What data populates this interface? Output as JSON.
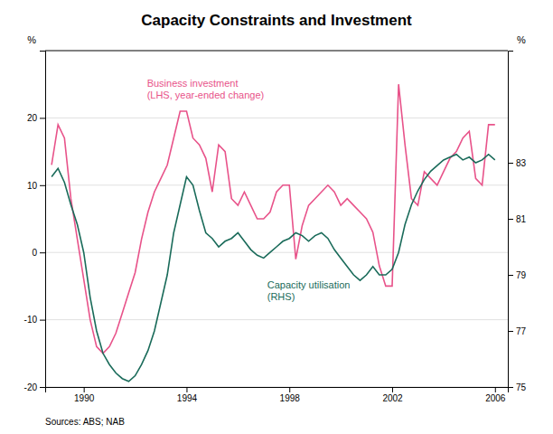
{
  "chart_data": {
    "type": "line",
    "title": "Capacity Constraints and Investment",
    "source": "Sources: ABS; NAB",
    "ylabel": "%",
    "y2label": "%",
    "xlim": [
      1988.5,
      2006.5
    ],
    "xticks": [
      1990,
      1994,
      1998,
      2002,
      2006
    ],
    "ylim": [
      -20,
      30
    ],
    "yticks": [
      -20,
      -10,
      0,
      10,
      20
    ],
    "y2lim": [
      75,
      87
    ],
    "y2ticks": [
      75,
      77,
      79,
      81,
      83
    ],
    "grid": true,
    "x": [
      1988.75,
      1989.0,
      1989.25,
      1989.5,
      1989.75,
      1990.0,
      1990.25,
      1990.5,
      1990.75,
      1991.0,
      1991.25,
      1991.5,
      1991.75,
      1992.0,
      1992.25,
      1992.5,
      1992.75,
      1993.0,
      1993.25,
      1993.5,
      1993.75,
      1994.0,
      1994.25,
      1994.5,
      1994.75,
      1995.0,
      1995.25,
      1995.5,
      1995.75,
      1996.0,
      1996.25,
      1996.5,
      1996.75,
      1997.0,
      1997.25,
      1997.5,
      1997.75,
      1998.0,
      1998.25,
      1998.5,
      1998.75,
      1999.0,
      1999.25,
      1999.5,
      1999.75,
      2000.0,
      2000.25,
      2000.5,
      2000.75,
      2001.0,
      2001.25,
      2001.5,
      2001.75,
      2002.0,
      2002.25,
      2002.5,
      2002.75,
      2003.0,
      2003.25,
      2003.5,
      2003.75,
      2004.0,
      2004.25,
      2004.5,
      2004.75,
      2005.0,
      2005.25,
      2005.5,
      2005.75,
      2006.0
    ],
    "series": [
      {
        "name": "Business investment\n(LHS, year-ended change)",
        "color": "#e8538a",
        "values": [
          13,
          19,
          17,
          8,
          2,
          -4,
          -10,
          -14,
          -15,
          -14,
          -12,
          -9,
          -6,
          -3,
          2,
          6,
          9,
          11,
          13,
          17,
          21,
          21,
          17,
          16,
          14,
          9,
          16,
          15,
          8,
          7,
          9,
          7,
          5,
          5,
          6,
          9,
          10,
          10,
          -1,
          4,
          7,
          8,
          9,
          10,
          9,
          7,
          8,
          7,
          6,
          5,
          3,
          -2,
          -5,
          -5,
          25,
          16,
          8,
          7,
          12,
          11,
          10,
          12,
          14,
          15,
          17,
          18,
          11,
          10,
          19,
          19
        ]
      },
      {
        "name": "Capacity utilisation\n(RHS)",
        "color": "#1a6b5a",
        "axis": "y2",
        "values": [
          82.5,
          82.8,
          82.3,
          81.5,
          80.8,
          79.8,
          78.2,
          77.0,
          76.2,
          75.8,
          75.5,
          75.3,
          75.2,
          75.4,
          75.8,
          76.3,
          77.0,
          78.0,
          79.0,
          80.5,
          81.5,
          82.5,
          82.2,
          81.3,
          80.5,
          80.3,
          80.0,
          80.2,
          80.3,
          80.5,
          80.2,
          79.9,
          79.7,
          79.6,
          79.8,
          80.0,
          80.2,
          80.3,
          80.5,
          80.4,
          80.2,
          80.4,
          80.5,
          80.3,
          79.9,
          79.6,
          79.3,
          79.0,
          78.8,
          79.0,
          79.3,
          79.0,
          79.0,
          79.2,
          79.8,
          80.8,
          81.5,
          82.0,
          82.4,
          82.7,
          82.9,
          83.1,
          83.2,
          83.3,
          83.1,
          83.2,
          83.0,
          83.1,
          83.3,
          83.1
        ]
      }
    ]
  }
}
